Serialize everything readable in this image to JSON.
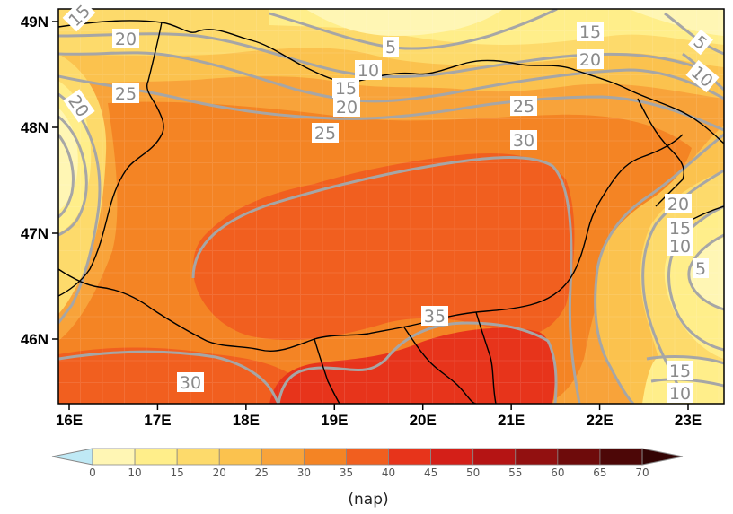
{
  "map": {
    "lat_ticks": [
      {
        "label": "49N",
        "lat": 49
      },
      {
        "label": "48N",
        "lat": 48
      },
      {
        "label": "47N",
        "lat": 47
      },
      {
        "label": "46N",
        "lat": 46
      }
    ],
    "lon_ticks": [
      {
        "label": "16E",
        "lon": 16
      },
      {
        "label": "17E",
        "lon": 17
      },
      {
        "label": "18E",
        "lon": 18
      },
      {
        "label": "19E",
        "lon": 19
      },
      {
        "label": "20E",
        "lon": 20
      },
      {
        "label": "21E",
        "lon": 21
      },
      {
        "label": "22E",
        "lon": 22
      },
      {
        "label": "23E",
        "lon": 23
      }
    ],
    "contour_labels": [
      "15",
      "20",
      "5",
      "10",
      "15",
      "20",
      "25",
      "20",
      "25",
      "25",
      "15",
      "20",
      "5",
      "10",
      "30",
      "20",
      "15",
      "10",
      "5",
      "35",
      "30",
      "15",
      "10"
    ],
    "colors": {
      "level_0_10": "#fff6b4",
      "level_10_15": "#ffee8a",
      "level_15_20": "#fdda6b",
      "level_20_25": "#fbc24e",
      "level_25_30": "#f8a33a",
      "level_30_35": "#f48424",
      "level_35_40": "#f15f1f",
      "level_40_45": "#e7341b",
      "contour": "#a6a6a6",
      "border": "#000000"
    }
  },
  "colorbar": {
    "ticks": [
      "0",
      "10",
      "15",
      "20",
      "25",
      "30",
      "35",
      "40",
      "45",
      "50",
      "55",
      "60",
      "65",
      "70"
    ],
    "colors": [
      "#bfe9f5",
      "#fff6b4",
      "#ffee8a",
      "#fdda6b",
      "#fbc24e",
      "#f8a33a",
      "#f48424",
      "#f15f1f",
      "#e7341b",
      "#d41f18",
      "#b51414",
      "#921010",
      "#6e0b0b",
      "#4d0707",
      "#330404"
    ],
    "unit": "(nap)"
  }
}
